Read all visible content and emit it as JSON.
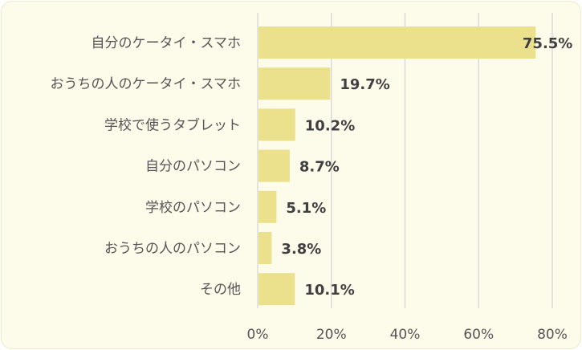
{
  "chart_data": {
    "type": "bar",
    "orientation": "horizontal",
    "categories": [
      "自分のケータイ・スマホ",
      "おうちの人のケータイ・スマホ",
      "学校で使うタブレット",
      "自分のパソコン",
      "学校のパソコン",
      "おうちの人のパソコン",
      "その他"
    ],
    "values": [
      75.5,
      19.7,
      10.2,
      8.7,
      5.1,
      3.8,
      10.1
    ],
    "value_labels": [
      "75.5%",
      "19.7%",
      "10.2%",
      "8.7%",
      "5.1%",
      "3.8%",
      "10.1%"
    ],
    "xlim": [
      0,
      80
    ],
    "xticks": [
      0,
      20,
      40,
      60,
      80
    ],
    "xtick_labels": [
      "0%",
      "20%",
      "40%",
      "60%",
      "80%"
    ],
    "title": "",
    "xlabel": "",
    "ylabel": "",
    "grid": "vertical",
    "legend": "none",
    "colors": {
      "bar": "#ebe08c",
      "background": "#fdfbea",
      "grid": "#d6d6d6",
      "text": "#555555",
      "value_text": "#404040"
    }
  }
}
